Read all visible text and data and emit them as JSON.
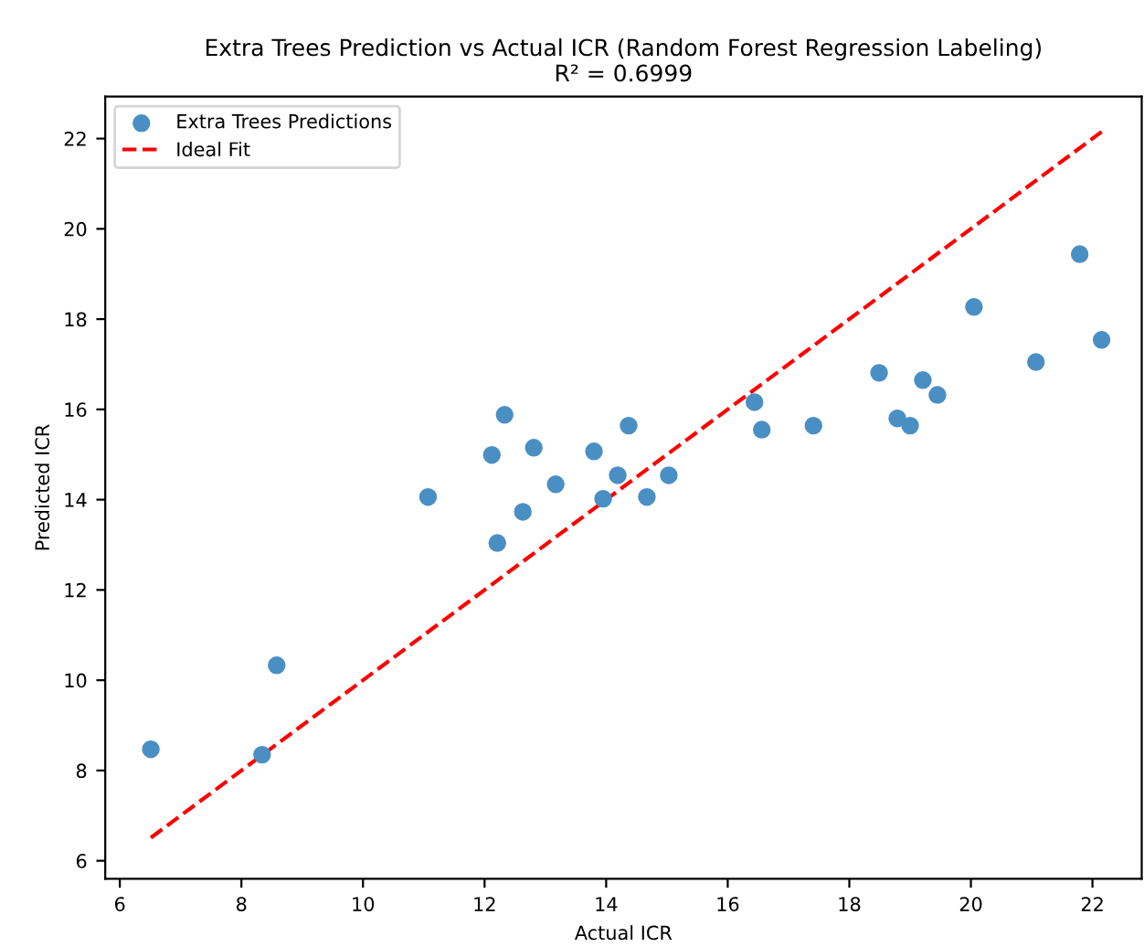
{
  "chart_data": {
    "type": "scatter",
    "title": "Extra Trees Prediction vs Actual ICR (Random Forest Regression Labeling)\nR² = 0.6999",
    "xlabel": "Actual ICR",
    "ylabel": "Predicted ICR",
    "series": [
      {
        "name": "Extra Trees Predictions",
        "color": "#4a8fc4",
        "marker": "circle",
        "x": [
          6.51,
          8.34,
          8.58,
          11.07,
          12.12,
          12.33,
          12.21,
          12.63,
          12.81,
          13.17,
          13.8,
          13.95,
          14.19,
          14.37,
          14.67,
          15.03,
          16.44,
          16.56,
          17.41,
          18.49,
          18.79,
          19.0,
          19.21,
          19.45,
          20.05,
          21.07,
          21.79,
          22.15
        ],
        "values": [
          8.47,
          8.35,
          10.33,
          14.06,
          14.99,
          15.88,
          13.04,
          13.73,
          15.15,
          14.34,
          15.07,
          14.02,
          14.54,
          15.64,
          14.06,
          14.54,
          16.16,
          15.55,
          15.64,
          16.81,
          15.8,
          15.64,
          16.65,
          16.32,
          18.27,
          17.05,
          19.44,
          17.54
        ]
      },
      {
        "name": "Ideal Fit",
        "type": "line",
        "color": "#ff0000",
        "line_style": "dashed",
        "x": [
          6.51,
          22.15
        ],
        "values": [
          6.51,
          22.15
        ]
      }
    ],
    "xlim": [
      5.76,
      22.81
    ],
    "ylim": [
      5.6,
      22.93
    ],
    "xticks": [
      6,
      8,
      10,
      12,
      14,
      16,
      18,
      20,
      22
    ],
    "yticks": [
      6,
      8,
      10,
      12,
      14,
      16,
      18,
      20,
      22
    ],
    "grid": false,
    "legend": "top left"
  }
}
